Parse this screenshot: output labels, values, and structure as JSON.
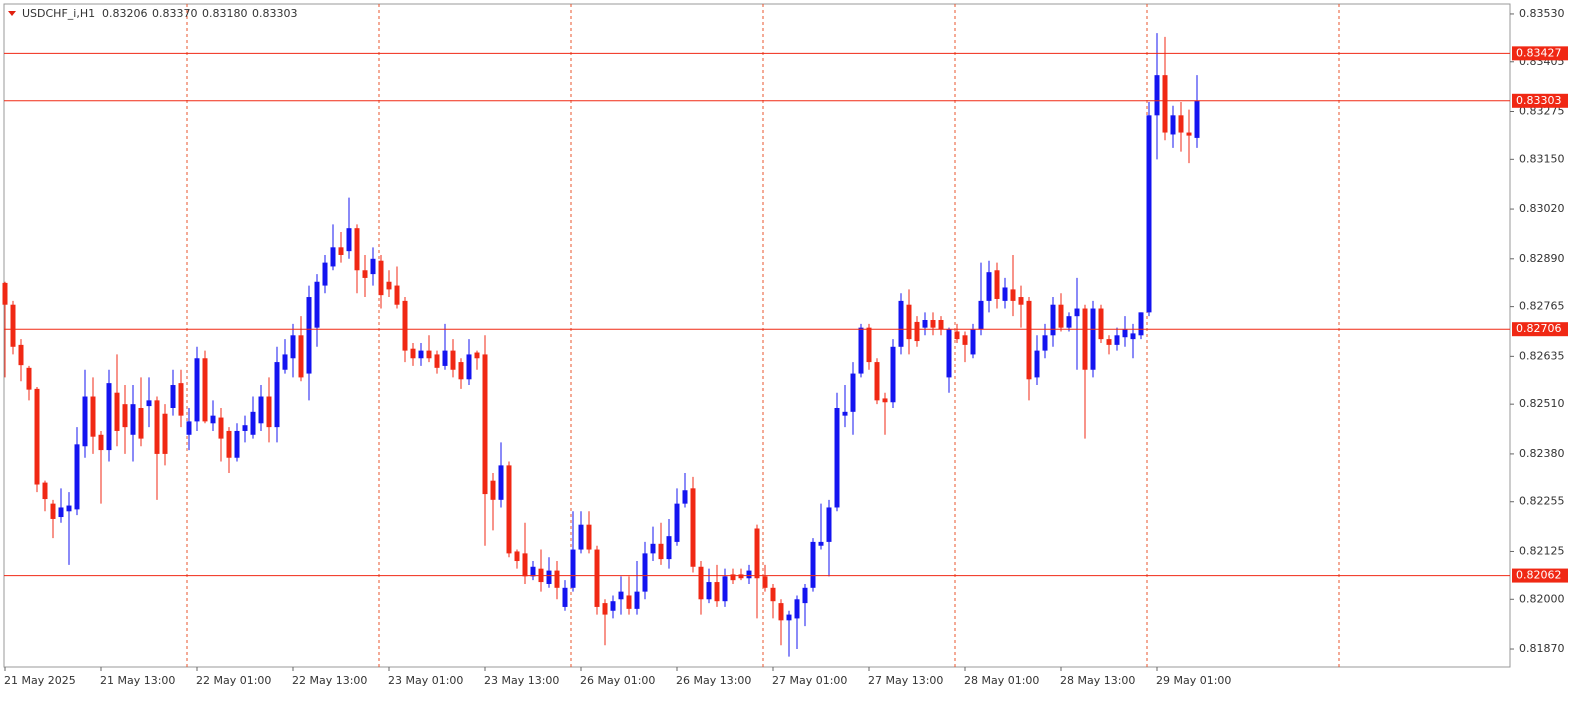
{
  "chart_data": {
    "type": "candlestick",
    "header": {
      "symbol": "USDCHF_i,H1",
      "ohlc": [
        "0.83206",
        "0.83370",
        "0.83180",
        "0.83303"
      ]
    },
    "categories": [
      "21 May 2025",
      null,
      null,
      null,
      null,
      null,
      null,
      null,
      null,
      null,
      null,
      null,
      "21 May 13:00",
      null,
      null,
      null,
      null,
      null,
      null,
      null,
      null,
      null,
      null,
      null,
      "22 May 01:00",
      null,
      null,
      null,
      null,
      null,
      null,
      null,
      null,
      null,
      null,
      null,
      "22 May 13:00",
      null,
      null,
      null,
      null,
      null,
      null,
      null,
      null,
      null,
      null,
      null,
      "23 May 01:00",
      null,
      null,
      null,
      null,
      null,
      null,
      null,
      null,
      null,
      null,
      null,
      "23 May 13:00",
      null,
      null,
      null,
      null,
      null,
      null,
      null,
      null,
      null,
      null,
      null,
      "26 May 01:00",
      null,
      null,
      null,
      null,
      null,
      null,
      null,
      null,
      null,
      null,
      null,
      "26 May 13:00",
      null,
      null,
      null,
      null,
      null,
      null,
      null,
      null,
      null,
      null,
      null,
      "27 May 01:00",
      null,
      null,
      null,
      null,
      null,
      null,
      null,
      null,
      null,
      null,
      null,
      "27 May 13:00",
      null,
      null,
      null,
      null,
      null,
      null,
      null,
      null,
      null,
      null,
      null,
      "28 May 01:00",
      null,
      null,
      null,
      null,
      null,
      null,
      null,
      null,
      null,
      null,
      null,
      "28 May 13:00",
      null,
      null,
      null,
      null,
      null,
      null,
      null,
      null,
      null,
      null,
      null,
      "29 May 01:00",
      null,
      null,
      null,
      null,
      null
    ],
    "open": [
      0.82827,
      0.8277,
      0.82665,
      0.82605,
      0.8255,
      0.82305,
      0.8225,
      0.82215,
      0.8223,
      0.82235,
      0.824,
      0.8253,
      0.8243,
      0.8239,
      0.8254,
      0.8251,
      0.8243,
      0.825,
      0.82505,
      0.8252,
      0.82485,
      0.825,
      0.82565,
      0.8243,
      0.82465,
      0.8263,
      0.8246,
      0.82475,
      0.8244,
      0.8237,
      0.8244,
      0.8243,
      0.8246,
      0.8253,
      0.8245,
      0.826,
      0.8263,
      0.8269,
      0.8259,
      0.8271,
      0.8282,
      0.8287,
      0.8292,
      0.8291,
      0.8297,
      0.8286,
      0.8285,
      0.82885,
      0.8283,
      0.8282,
      0.8278,
      0.82655,
      0.8263,
      0.8265,
      0.8264,
      0.8261,
      0.8265,
      0.8262,
      0.82575,
      0.82645,
      0.8264,
      0.8231,
      0.8226,
      0.8235,
      0.82125,
      0.8212,
      0.8206,
      0.8208,
      0.8204,
      0.82075,
      0.8198,
      0.8203,
      0.8213,
      0.82195,
      0.8213,
      0.8199,
      0.8197,
      0.82,
      0.8201,
      0.81975,
      0.8202,
      0.8212,
      0.82145,
      0.82105,
      0.8215,
      0.8225,
      0.8229,
      0.82085,
      0.82,
      0.82045,
      0.81995,
      0.82065,
      0.82065,
      0.82055,
      0.82185,
      0.8206,
      0.8203,
      0.8199,
      0.81945,
      0.8195,
      0.8199,
      0.8203,
      0.8214,
      0.8215,
      0.8224,
      0.8248,
      0.8249,
      0.8259,
      0.8271,
      0.8262,
      0.82525,
      0.82515,
      0.8266,
      0.8277,
      0.82725,
      0.8271,
      0.8273,
      0.8273,
      0.8258,
      0.827,
      0.8269,
      0.8264,
      0.82705,
      0.8278,
      0.8286,
      0.8278,
      0.8281,
      0.8279,
      0.8278,
      0.8258,
      0.8265,
      0.8269,
      0.8277,
      0.8271,
      0.8274,
      0.8276,
      0.826,
      0.8276,
      0.8268,
      0.82665,
      0.82685,
      0.8268,
      0.8269,
      0.8275,
      0.83265,
      0.8337,
      0.83215,
      0.83265,
      0.8322,
      0.83206
    ],
    "high": [
      0.8283,
      0.8278,
      0.8268,
      0.8261,
      0.82555,
      0.8231,
      0.8226,
      0.8229,
      0.8228,
      0.8245,
      0.826,
      0.8258,
      0.8244,
      0.826,
      0.8264,
      0.8256,
      0.8256,
      0.8258,
      0.8258,
      0.8253,
      0.8251,
      0.826,
      0.826,
      0.825,
      0.8266,
      0.8265,
      0.8252,
      0.825,
      0.8245,
      0.8246,
      0.8248,
      0.8253,
      0.8256,
      0.8258,
      0.8266,
      0.8268,
      0.8272,
      0.8274,
      0.8282,
      0.8285,
      0.829,
      0.8298,
      0.8296,
      0.8305,
      0.8298,
      0.829,
      0.8292,
      0.829,
      0.8286,
      0.8287,
      0.8279,
      0.8267,
      0.8267,
      0.8269,
      0.8265,
      0.8272,
      0.8268,
      0.8263,
      0.8268,
      0.8265,
      0.8269,
      0.8233,
      0.8241,
      0.8236,
      0.8213,
      0.822,
      0.821,
      0.8213,
      0.8211,
      0.821,
      0.8205,
      0.8223,
      0.8223,
      0.8223,
      0.8214,
      0.82,
      0.8201,
      0.8206,
      0.8206,
      0.821,
      0.8215,
      0.8219,
      0.822,
      0.8221,
      0.8229,
      0.8233,
      0.8232,
      0.821,
      0.8208,
      0.8209,
      0.8208,
      0.8208,
      0.8208,
      0.8209,
      0.82195,
      0.8209,
      0.8204,
      0.82,
      0.8197,
      0.8201,
      0.8204,
      0.8216,
      0.8225,
      0.8226,
      0.8254,
      0.8256,
      0.8262,
      0.8272,
      0.8272,
      0.8263,
      0.8254,
      0.8268,
      0.828,
      0.8281,
      0.8274,
      0.8275,
      0.8275,
      0.8274,
      0.8271,
      0.8272,
      0.827,
      0.8272,
      0.8288,
      0.82885,
      0.8288,
      0.8284,
      0.829,
      0.8282,
      0.8279,
      0.8269,
      0.8272,
      0.8279,
      0.828,
      0.8275,
      0.8284,
      0.8277,
      0.8278,
      0.8277,
      0.8269,
      0.8271,
      0.8274,
      0.8272,
      0.8275,
      0.833,
      0.8348,
      0.8347,
      0.8329,
      0.833,
      0.8328,
      0.8337
    ],
    "low": [
      0.8258,
      0.8264,
      0.8257,
      0.8252,
      0.8228,
      0.8223,
      0.8216,
      0.822,
      0.8209,
      0.8222,
      0.8237,
      0.8238,
      0.8225,
      0.8236,
      0.824,
      0.8238,
      0.8236,
      0.824,
      0.8245,
      0.8226,
      0.8235,
      0.8248,
      0.8245,
      0.8239,
      0.8244,
      0.8246,
      0.8244,
      0.8236,
      0.8233,
      0.8236,
      0.8241,
      0.8242,
      0.8244,
      0.8241,
      0.8241,
      0.8259,
      0.8258,
      0.8257,
      0.8252,
      0.8266,
      0.828,
      0.8286,
      0.8288,
      0.8289,
      0.828,
      0.8279,
      0.8282,
      0.8276,
      0.8279,
      0.8276,
      0.8262,
      0.8261,
      0.8261,
      0.8262,
      0.8259,
      0.826,
      0.8258,
      0.8255,
      0.8256,
      0.826,
      0.8214,
      0.8218,
      0.8224,
      0.8211,
      0.8208,
      0.8204,
      0.8205,
      0.8202,
      0.8203,
      0.82,
      0.8197,
      0.8202,
      0.8212,
      0.8212,
      0.8196,
      0.8188,
      0.8195,
      0.8196,
      0.8196,
      0.8196,
      0.82,
      0.821,
      0.8209,
      0.8208,
      0.8214,
      0.8224,
      0.8207,
      0.8196,
      0.8199,
      0.8198,
      0.8198,
      0.8204,
      0.8205,
      0.8204,
      0.8195,
      0.8202,
      0.8195,
      0.8188,
      0.8185,
      0.8187,
      0.8193,
      0.8202,
      0.8213,
      0.8206,
      0.8223,
      0.8245,
      0.8243,
      0.8258,
      0.826,
      0.8251,
      0.8243,
      0.825,
      0.8264,
      0.8264,
      0.8266,
      0.8269,
      0.8269,
      0.8269,
      0.8254,
      0.8267,
      0.8262,
      0.8263,
      0.8269,
      0.8275,
      0.8276,
      0.8276,
      0.8274,
      0.8271,
      0.8252,
      0.8256,
      0.8263,
      0.8266,
      0.827,
      0.827,
      0.826,
      0.8242,
      0.8258,
      0.8267,
      0.8264,
      0.8265,
      0.8266,
      0.8263,
      0.8268,
      0.8274,
      0.8315,
      0.832,
      0.8318,
      0.8317,
      0.8314,
      0.8318
    ],
    "close": [
      0.8277,
      0.8266,
      0.82612,
      0.82548,
      0.823,
      0.82262,
      0.8221,
      0.8224,
      0.82245,
      0.82405,
      0.8253,
      0.82425,
      0.8239,
      0.82565,
      0.8244,
      0.8245,
      0.8251,
      0.8242,
      0.8252,
      0.8238,
      0.8238,
      0.8256,
      0.8248,
      0.82465,
      0.8263,
      0.82465,
      0.8248,
      0.8242,
      0.8237,
      0.8244,
      0.82455,
      0.8249,
      0.8253,
      0.8245,
      0.8262,
      0.8264,
      0.8269,
      0.8258,
      0.8279,
      0.8283,
      0.8288,
      0.8292,
      0.829,
      0.8297,
      0.8286,
      0.8284,
      0.8289,
      0.82795,
      0.8281,
      0.8277,
      0.8265,
      0.8263,
      0.8265,
      0.8263,
      0.82605,
      0.8265,
      0.826,
      0.82575,
      0.8264,
      0.8263,
      0.82275,
      0.8226,
      0.8235,
      0.8212,
      0.821,
      0.8206,
      0.82085,
      0.82045,
      0.82075,
      0.8203,
      0.8203,
      0.8213,
      0.82195,
      0.8213,
      0.8198,
      0.8196,
      0.81995,
      0.8202,
      0.81975,
      0.8202,
      0.8212,
      0.82145,
      0.82105,
      0.82165,
      0.8225,
      0.82285,
      0.82085,
      0.82,
      0.82045,
      0.81995,
      0.8206,
      0.8205,
      0.82055,
      0.82075,
      0.82055,
      0.8203,
      0.81995,
      0.81945,
      0.8196,
      0.82,
      0.8203,
      0.8215,
      0.8215,
      0.8224,
      0.825,
      0.8249,
      0.8259,
      0.8271,
      0.8262,
      0.8252,
      0.82515,
      0.8266,
      0.8278,
      0.8268,
      0.82675,
      0.8273,
      0.8271,
      0.82705,
      0.82705,
      0.8268,
      0.82665,
      0.82705,
      0.8278,
      0.82855,
      0.82785,
      0.82815,
      0.8278,
      0.8277,
      0.82575,
      0.8265,
      0.8269,
      0.8277,
      0.8271,
      0.8274,
      0.8276,
      0.826,
      0.8276,
      0.8268,
      0.82665,
      0.8269,
      0.82705,
      0.82695,
      0.8275,
      0.83265,
      0.8337,
      0.8322,
      0.83265,
      0.8322,
      0.83212,
      0.83303
    ],
    "up_color": "#1414f0",
    "down_color": "#f02814",
    "ylim": [
      0.81823,
      0.83556
    ],
    "yticks": [
      {
        "value": 0.8353,
        "label": "0.83530"
      },
      {
        "value": 0.83405,
        "label": "0.83405"
      },
      {
        "value": 0.83275,
        "label": "0.83275"
      },
      {
        "value": 0.8315,
        "label": "0.83150"
      },
      {
        "value": 0.8302,
        "label": "0.83020"
      },
      {
        "value": 0.8289,
        "label": "0.82890"
      },
      {
        "value": 0.82765,
        "label": "0.82765"
      },
      {
        "value": 0.82635,
        "label": "0.82635"
      },
      {
        "value": 0.8251,
        "label": "0.82510"
      },
      {
        "value": 0.8238,
        "label": "0.82380"
      },
      {
        "value": 0.82255,
        "label": "0.82255"
      },
      {
        "value": 0.82125,
        "label": "0.82125"
      },
      {
        "value": 0.82,
        "label": "0.82000"
      },
      {
        "value": 0.8187,
        "label": "0.81870"
      }
    ],
    "hlines": [
      0.83427,
      0.83303,
      0.82706,
      0.82062
    ],
    "hline_color": "#f02814",
    "grid": true
  }
}
